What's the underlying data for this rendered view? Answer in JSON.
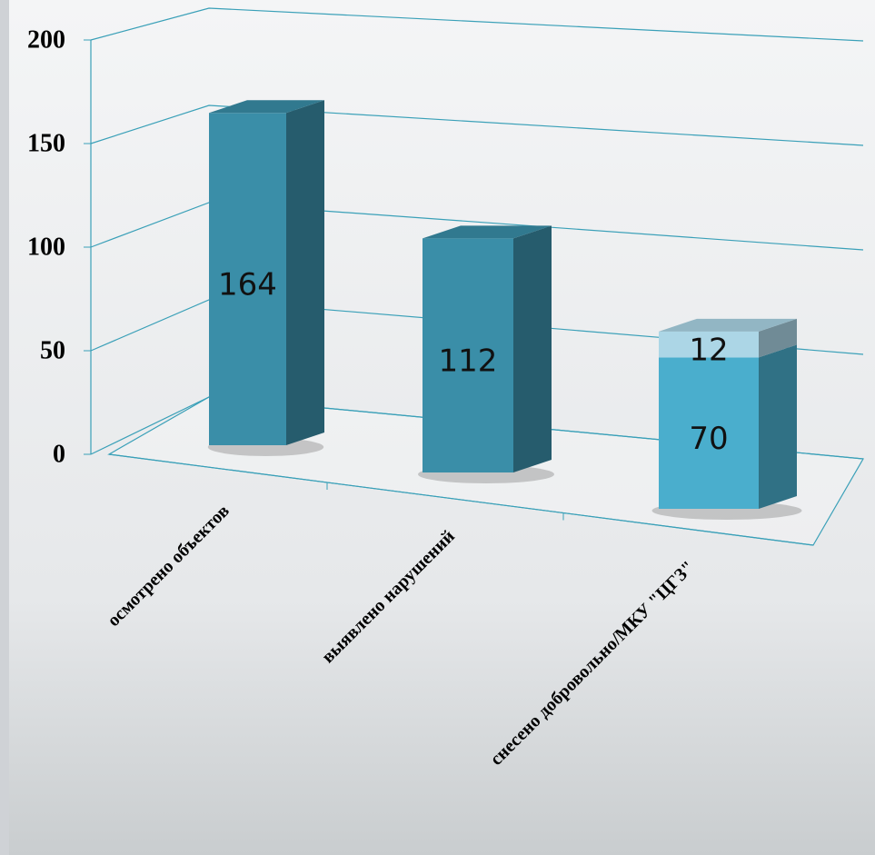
{
  "chart_data": {
    "type": "bar3d_stacked",
    "categories": [
      "осмотрено объектов",
      "выявлено нарушений",
      "снесено добровольно/МКУ \"ЦГЗ\""
    ],
    "series": [
      {
        "colors": [
          "#3a8ea8",
          "#3a8ea8",
          "#4aaecd"
        ],
        "values": [
          164,
          112,
          70
        ]
      },
      {
        "color": "#acd6e6",
        "values": [
          null,
          null,
          12
        ]
      }
    ],
    "ylim": [
      0,
      200
    ],
    "yticks": [
      0,
      50,
      100,
      150,
      200
    ],
    "grid": true
  }
}
